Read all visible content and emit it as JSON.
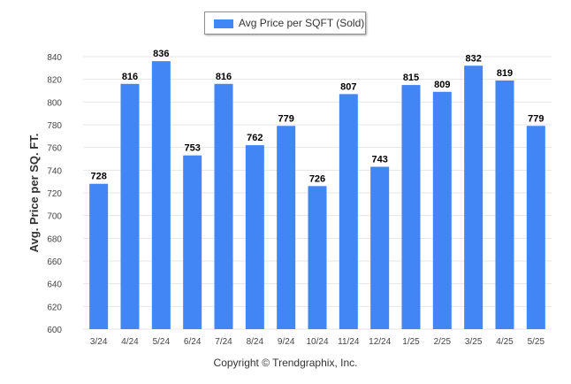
{
  "colors": {
    "bar": "#4285f4",
    "grid": "#e6e6e6",
    "axis_text": "#444444",
    "label_text": "#000000"
  },
  "legend": {
    "label": "Avg Price per SQFT (Sold)"
  },
  "footer": {
    "copyright": "Copyright © Trendgraphix, Inc."
  },
  "chart_data": {
    "type": "bar",
    "categories": [
      "3/24",
      "4/24",
      "5/24",
      "6/24",
      "7/24",
      "8/24",
      "9/24",
      "10/24",
      "11/24",
      "12/24",
      "1/25",
      "2/25",
      "3/25",
      "4/25",
      "5/25"
    ],
    "series": [
      {
        "name": "Avg Price per SQFT (Sold)",
        "values": [
          728,
          816,
          836,
          753,
          816,
          762,
          779,
          726,
          807,
          743,
          815,
          809,
          832,
          819,
          779
        ]
      }
    ],
    "ylabel": "Avg. Price per SQ. FT.",
    "ylim": [
      600,
      840
    ],
    "yticks": [
      600,
      620,
      640,
      660,
      680,
      700,
      720,
      740,
      760,
      780,
      800,
      820,
      840
    ],
    "grid": true,
    "legend_position": "top-center",
    "data_labels": true
  }
}
